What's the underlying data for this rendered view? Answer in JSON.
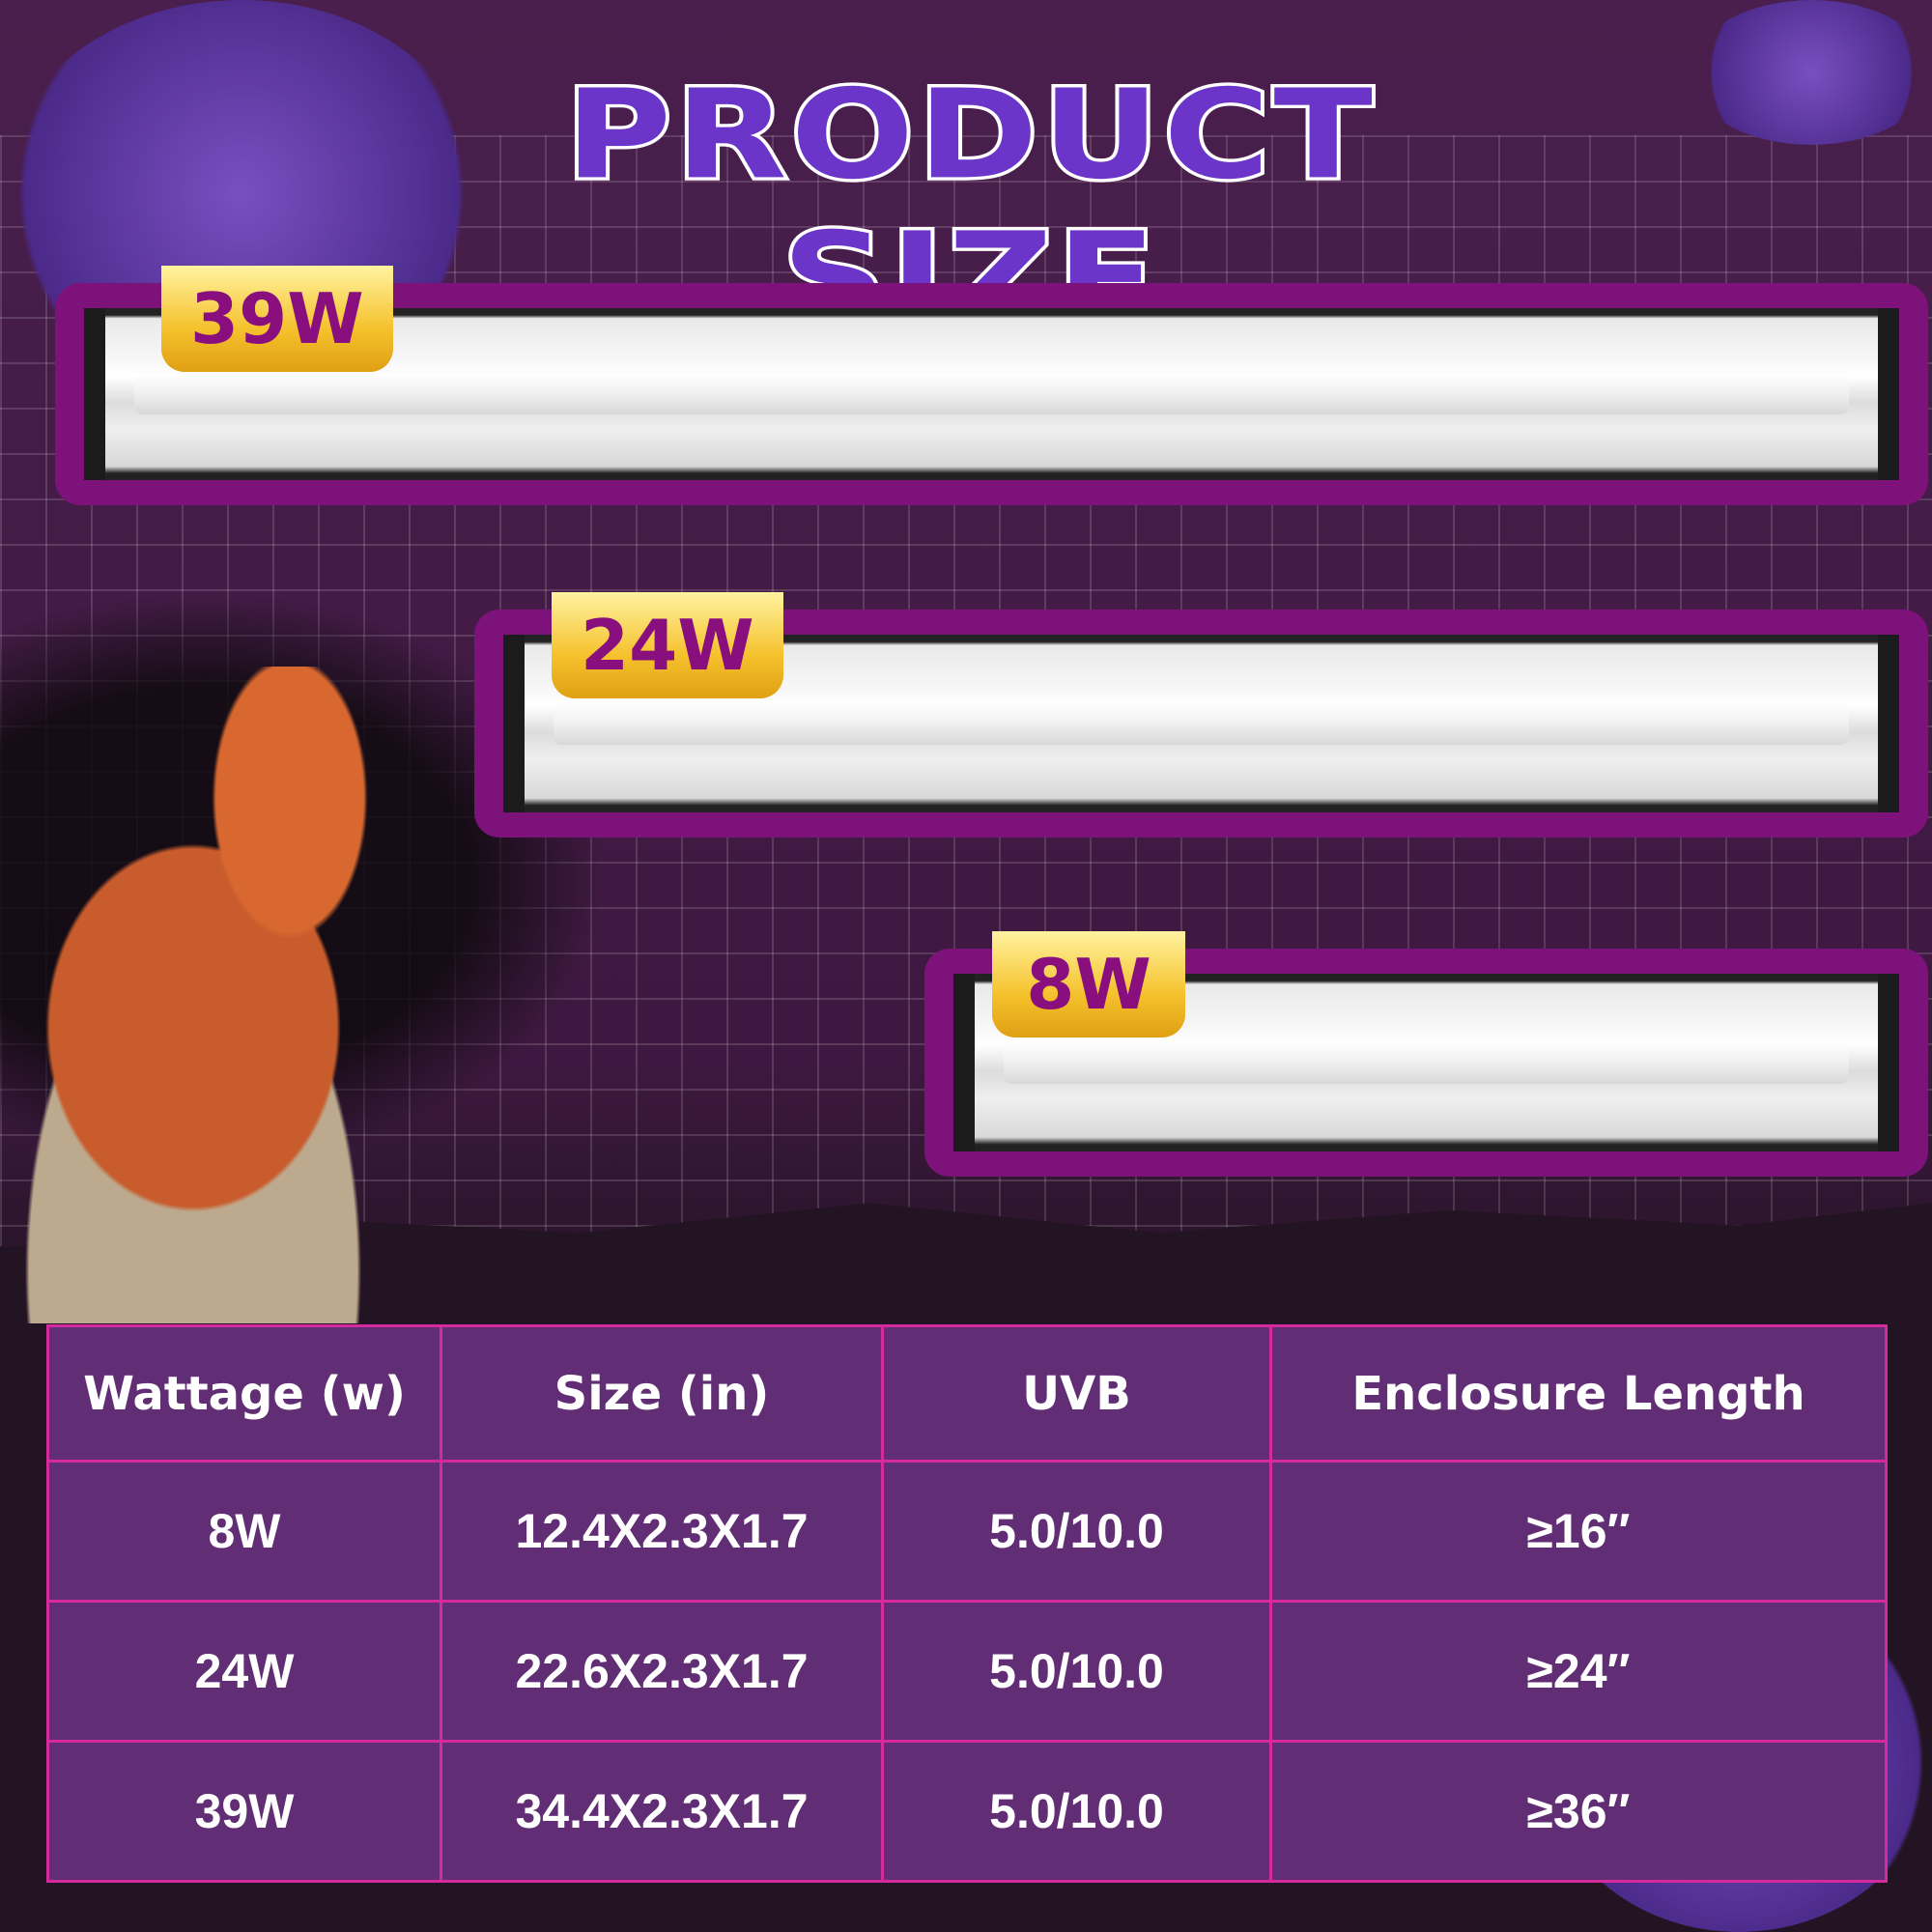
{
  "title": "PRODUCT SIZE",
  "lamps": [
    {
      "label": "39W"
    },
    {
      "label": "24W"
    },
    {
      "label": "8W"
    }
  ],
  "table": {
    "headers": [
      "Wattage (w)",
      "Size (in)",
      "UVB",
      "Enclosure Length"
    ],
    "rows": [
      [
        "8W",
        "12.4X2.3X1.7",
        "5.0/10.0",
        "≥16″"
      ],
      [
        "24W",
        "22.6X2.3X1.7",
        "5.0/10.0",
        "≥24″"
      ],
      [
        "39W",
        "34.4X2.3X1.7",
        "5.0/10.0",
        "≥36″"
      ]
    ]
  },
  "colors": {
    "title": "#6a35c8",
    "badge": "#f5c12c",
    "badge_text": "#8a0f7e",
    "table_bg": "#612d74",
    "table_border": "#d42a9e"
  }
}
